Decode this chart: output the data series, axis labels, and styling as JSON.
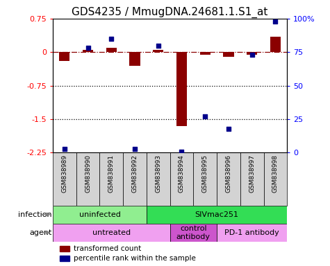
{
  "title": "GDS4235 / MmugDNA.24681.1.S1_at",
  "samples": [
    "GSM838989",
    "GSM838990",
    "GSM838991",
    "GSM838992",
    "GSM838993",
    "GSM838994",
    "GSM838995",
    "GSM838996",
    "GSM838997",
    "GSM838998"
  ],
  "transformed_count": [
    -0.2,
    0.05,
    0.1,
    -0.3,
    0.05,
    -1.65,
    -0.05,
    -0.1,
    -0.05,
    0.35
  ],
  "percentile_rank": [
    3,
    78,
    85,
    3,
    80,
    1,
    27,
    18,
    73,
    98
  ],
  "ylim_left": [
    -2.25,
    0.75
  ],
  "ylim_right": [
    0,
    100
  ],
  "yticks_left": [
    0.75,
    0,
    -0.75,
    -1.5,
    -2.25
  ],
  "yticks_right": [
    100,
    75,
    50,
    25,
    0
  ],
  "dotted_lines": [
    -0.75,
    -1.5
  ],
  "bar_color": "#8B0000",
  "dot_color": "#00008B",
  "sample_label_bg": "#D3D3D3",
  "infection_groups": [
    {
      "label": "uninfected",
      "start": 0,
      "end": 4,
      "color": "#90EE90"
    },
    {
      "label": "SIVmac251",
      "start": 4,
      "end": 10,
      "color": "#33DD55"
    }
  ],
  "agent_groups": [
    {
      "label": "untreated",
      "start": 0,
      "end": 5,
      "color": "#F0A0F0"
    },
    {
      "label": "control\nantibody",
      "start": 5,
      "end": 7,
      "color": "#CC55CC"
    },
    {
      "label": "PD-1 antibody",
      "start": 7,
      "end": 10,
      "color": "#F0A0F0"
    }
  ],
  "legend_items": [
    {
      "label": "transformed count",
      "color": "#8B0000"
    },
    {
      "label": "percentile rank within the sample",
      "color": "#00008B"
    }
  ],
  "infection_label": "infection",
  "agent_label": "agent",
  "title_fontsize": 11,
  "tick_fontsize": 8,
  "label_fontsize": 8,
  "legend_fontsize": 7.5
}
